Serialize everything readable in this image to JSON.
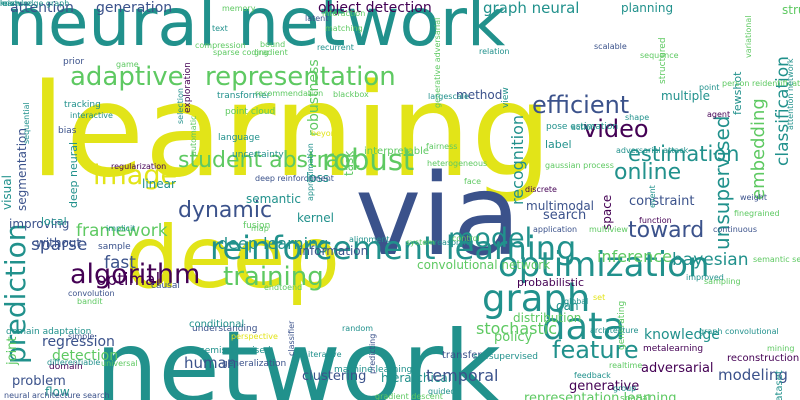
{
  "palette": {
    "dark_purple": "#440154",
    "indigo": "#3b528b",
    "teal": "#21918c",
    "green": "#5ec962",
    "yellow": "#e2e418",
    "background": "#ffffff"
  },
  "words": [
    "learning",
    "network",
    "neural network",
    "deep",
    "via",
    "reinforcement learning",
    "adaptive",
    "representation",
    "efficient",
    "video",
    "graph",
    "data",
    "optimization",
    "model",
    "image",
    "robust",
    "student abstract",
    "dynamic",
    "training",
    "algorithm",
    "prediction",
    "feature",
    "toward",
    "online",
    "estimation",
    "unsupervised",
    "embedding",
    "classification",
    "framework",
    "deep learning",
    "bayesian",
    "recognition",
    "optimal",
    "sparse",
    "fast",
    "inference",
    "stochastic",
    "convolutional network",
    "attention",
    "generation",
    "object detection",
    "graph neural",
    "planning",
    "multiple",
    "method",
    "semantic",
    "kernel",
    "search",
    "constraint",
    "information",
    "human",
    "clustering",
    "hierarchical",
    "temporal",
    "modeling",
    "adversarial",
    "knowledge",
    "policy",
    "problem",
    "regression",
    "detection",
    "joint",
    "flow",
    "generative",
    "representation learning",
    "multimodal",
    "without",
    "improving",
    "deep neural",
    "local",
    "linear",
    "loss",
    "space",
    "label",
    "probabilistic",
    "gan",
    "structure",
    "dataset",
    "robustness",
    "task",
    "visual",
    "segmentation",
    "domain adaptation",
    "understanding",
    "machine learning",
    "distribution",
    "metalearning",
    "reconstruction",
    "transfer",
    "selfsupervised",
    "fewshot",
    "structured",
    "causal",
    "semisupervised",
    "generalization",
    "interpretable",
    "pose estimation",
    "uncertainty",
    "exploration",
    "bias",
    "prior",
    "tracking",
    "point cloud",
    "language",
    "transformer",
    "memory",
    "compression",
    "interaction",
    "text",
    "bound",
    "matching",
    "latent",
    "gradient",
    "relation",
    "agent",
    "scalable",
    "point",
    "recurrent",
    "blackbox",
    "view",
    "fairness",
    "heterogeneous",
    "deep reinforcement",
    "application",
    "multiview",
    "improved",
    "graph convolutional",
    "endtoend",
    "conditional",
    "bandit",
    "sample",
    "regularization",
    "reasoning",
    "control",
    "discrete",
    "face",
    "mining",
    "domain",
    "differentiable",
    "universal",
    "simple",
    "feedback",
    "realtime",
    "spatial",
    "group",
    "guided",
    "predicting",
    "gradient descent",
    "neural architecture search",
    "convolution",
    "system",
    "continuous",
    "function",
    "implicit",
    "random",
    "global",
    "map",
    "alignment",
    "automatic",
    "selection",
    "approximation",
    "sequential",
    "interactive",
    "game",
    "recommendation",
    "generative adversarial",
    "largescale",
    "gaussian process",
    "adversarial attack",
    "shape",
    "variational",
    "person reidentification",
    "attention network",
    "sampling",
    "sequence",
    "perspective",
    "set",
    "finegrained",
    "semantic segmentation",
    "generating",
    "beyond",
    "architecture",
    "event",
    "weight",
    "action",
    "iterative",
    "classifier",
    "fusion",
    "sparse coding",
    "mixture",
    "knowledge graph",
    "learn"
  ]
}
